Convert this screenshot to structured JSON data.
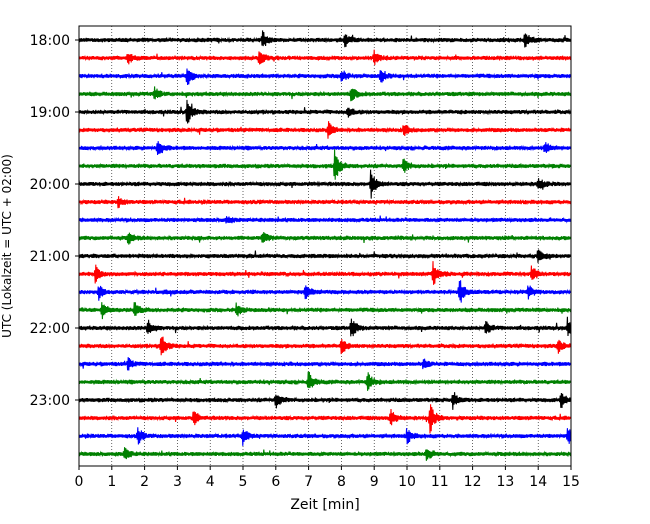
{
  "chart_data": {
    "type": "line",
    "title": "",
    "xlabel": "Zeit  [min]",
    "ylabel": "UTC (Lokalzeit = UTC + 02:00)",
    "xlim": [
      0,
      15
    ],
    "x_ticks": [
      0,
      1,
      2,
      3,
      4,
      5,
      6,
      7,
      8,
      9,
      10,
      11,
      12,
      13,
      14,
      15
    ],
    "x_tick_labels": [
      "0",
      "1",
      "2",
      "3",
      "4",
      "5",
      "6",
      "7",
      "8",
      "9",
      "10",
      "11",
      "12",
      "13",
      "14",
      "15"
    ],
    "y_tick_labels": [
      "18:00",
      "19:00",
      "20:00",
      "21:00",
      "22:00",
      "23:00"
    ],
    "row_start_times": [
      "18:00",
      "18:15",
      "18:30",
      "18:45",
      "19:00",
      "19:15",
      "19:30",
      "19:45",
      "20:00",
      "20:15",
      "20:30",
      "20:45",
      "21:00",
      "21:15",
      "21:30",
      "21:45",
      "22:00",
      "22:15",
      "22:30",
      "22:45",
      "23:00",
      "23:15",
      "23:30",
      "23:45"
    ],
    "color_cycle": [
      "#000000",
      "#ff0000",
      "#0000ff",
      "#008000"
    ],
    "vertical_grid": "dotted at each minute",
    "legend": "none",
    "events": [
      {
        "row": 0,
        "t": 5.6,
        "amp": 0.5
      },
      {
        "row": 0,
        "t": 8.1,
        "amp": 0.45
      },
      {
        "row": 0,
        "t": 13.6,
        "amp": 0.55
      },
      {
        "row": 1,
        "t": 1.5,
        "amp": 0.35
      },
      {
        "row": 1,
        "t": 5.5,
        "amp": 0.45
      },
      {
        "row": 1,
        "t": 9.0,
        "amp": 0.4
      },
      {
        "row": 2,
        "t": 3.3,
        "amp": 0.6
      },
      {
        "row": 2,
        "t": 8.0,
        "amp": 0.4
      },
      {
        "row": 2,
        "t": 9.2,
        "amp": 0.45
      },
      {
        "row": 3,
        "t": 2.3,
        "amp": 0.4
      },
      {
        "row": 3,
        "t": 8.3,
        "amp": 0.45
      },
      {
        "row": 4,
        "t": 3.3,
        "amp": 0.85
      },
      {
        "row": 4,
        "t": 8.2,
        "amp": 0.35
      },
      {
        "row": 5,
        "t": 7.6,
        "amp": 0.45
      },
      {
        "row": 5,
        "t": 9.9,
        "amp": 0.35
      },
      {
        "row": 6,
        "t": 2.4,
        "amp": 0.55
      },
      {
        "row": 6,
        "t": 14.2,
        "amp": 0.35
      },
      {
        "row": 7,
        "t": 7.8,
        "amp": 1.0
      },
      {
        "row": 7,
        "t": 9.9,
        "amp": 0.45
      },
      {
        "row": 8,
        "t": 8.9,
        "amp": 0.9
      },
      {
        "row": 8,
        "t": 14.0,
        "amp": 0.4
      },
      {
        "row": 9,
        "t": 1.2,
        "amp": 0.3
      },
      {
        "row": 10,
        "t": 4.5,
        "amp": 0.2
      },
      {
        "row": 11,
        "t": 1.5,
        "amp": 0.35
      },
      {
        "row": 11,
        "t": 5.6,
        "amp": 0.35
      },
      {
        "row": 12,
        "t": 14.0,
        "amp": 0.4
      },
      {
        "row": 13,
        "t": 0.5,
        "amp": 0.55
      },
      {
        "row": 13,
        "t": 10.8,
        "amp": 0.75
      },
      {
        "row": 13,
        "t": 13.8,
        "amp": 0.5
      },
      {
        "row": 14,
        "t": 0.6,
        "amp": 0.45
      },
      {
        "row": 14,
        "t": 6.9,
        "amp": 0.55
      },
      {
        "row": 14,
        "t": 11.6,
        "amp": 0.8
      },
      {
        "row": 14,
        "t": 13.7,
        "amp": 0.4
      },
      {
        "row": 15,
        "t": 0.7,
        "amp": 0.6
      },
      {
        "row": 15,
        "t": 1.7,
        "amp": 0.5
      },
      {
        "row": 15,
        "t": 4.8,
        "amp": 0.4
      },
      {
        "row": 16,
        "t": 2.1,
        "amp": 0.5
      },
      {
        "row": 16,
        "t": 8.3,
        "amp": 0.65
      },
      {
        "row": 16,
        "t": 12.4,
        "amp": 0.45
      },
      {
        "row": 16,
        "t": 14.9,
        "amp": 0.5
      },
      {
        "row": 17,
        "t": 2.5,
        "amp": 0.8
      },
      {
        "row": 17,
        "t": 8.0,
        "amp": 0.45
      },
      {
        "row": 17,
        "t": 14.6,
        "amp": 0.45
      },
      {
        "row": 18,
        "t": 1.5,
        "amp": 0.35
      },
      {
        "row": 18,
        "t": 10.5,
        "amp": 0.3
      },
      {
        "row": 19,
        "t": 7.0,
        "amp": 0.6
      },
      {
        "row": 19,
        "t": 8.8,
        "amp": 0.6
      },
      {
        "row": 20,
        "t": 6.0,
        "amp": 0.5
      },
      {
        "row": 20,
        "t": 11.4,
        "amp": 0.5
      },
      {
        "row": 20,
        "t": 14.7,
        "amp": 0.5
      },
      {
        "row": 21,
        "t": 3.5,
        "amp": 0.45
      },
      {
        "row": 21,
        "t": 9.5,
        "amp": 0.55
      },
      {
        "row": 21,
        "t": 10.7,
        "amp": 0.95
      },
      {
        "row": 22,
        "t": 1.8,
        "amp": 0.5
      },
      {
        "row": 22,
        "t": 5.0,
        "amp": 0.5
      },
      {
        "row": 22,
        "t": 10.0,
        "amp": 0.45
      },
      {
        "row": 22,
        "t": 14.9,
        "amp": 0.55
      },
      {
        "row": 23,
        "t": 1.4,
        "amp": 0.4
      },
      {
        "row": 23,
        "t": 10.6,
        "amp": 0.45
      }
    ]
  }
}
